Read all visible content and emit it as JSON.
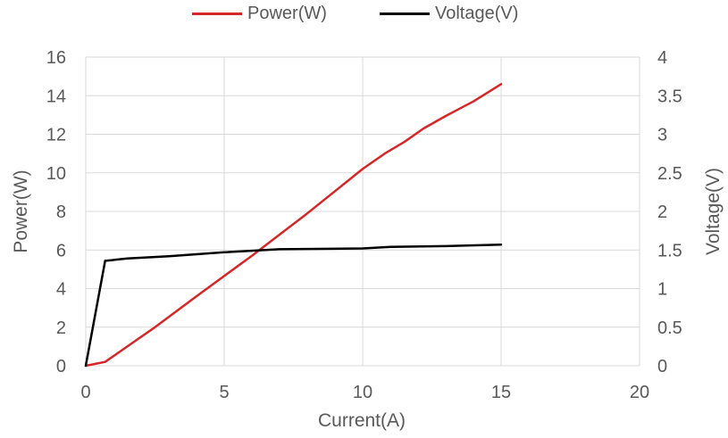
{
  "chart_data": {
    "type": "line",
    "xlabel": "Current(A)",
    "ylabel": "Power(W)",
    "y2label": "Voltage(V)",
    "xlim": [
      0,
      20
    ],
    "ylim": [
      0,
      16
    ],
    "y2lim": [
      0,
      4
    ],
    "xticks": [
      0,
      5,
      10,
      15,
      20
    ],
    "yticks": [
      0,
      2,
      4,
      6,
      8,
      10,
      12,
      14,
      16
    ],
    "y2ticks": [
      "0",
      "0.5",
      "1",
      "1.5",
      "2",
      "2.5",
      "3",
      "3.5",
      "4"
    ],
    "grid": true,
    "legend_position": "top",
    "series": [
      {
        "name": "Power(W)",
        "axis": "left",
        "color": "#d62728",
        "x": [
          0,
          0.7,
          1.5,
          2.5,
          4,
          6,
          8,
          10,
          10.8,
          11.5,
          12.2,
          13,
          14,
          15
        ],
        "y": [
          0,
          0.2,
          1.0,
          2.0,
          3.6,
          5.7,
          7.9,
          10.2,
          11.0,
          11.6,
          12.3,
          12.95,
          13.7,
          14.6
        ]
      },
      {
        "name": "Voltage(V)",
        "axis": "right",
        "color": "#000000",
        "x": [
          0,
          0.7,
          1.5,
          3,
          5,
          7,
          10,
          11,
          13,
          15
        ],
        "y": [
          0,
          1.36,
          1.39,
          1.42,
          1.47,
          1.51,
          1.52,
          1.54,
          1.55,
          1.57
        ]
      }
    ]
  }
}
